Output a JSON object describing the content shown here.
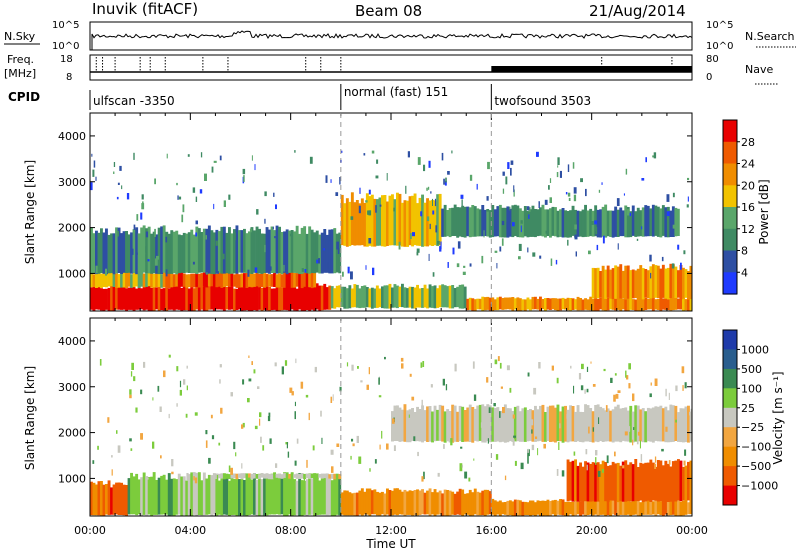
{
  "header": {
    "station": "Inuvik (fitACF)",
    "beam": "Beam 08",
    "date": "21/Aug/2014"
  },
  "top_strip": {
    "nsky_label": "N.Sky",
    "nsearch_label": "N.Search",
    "left_ticks": [
      "10^5",
      "10^0"
    ],
    "right_ticks": [
      "10^5",
      "10^0"
    ],
    "freq_label": "Freq.",
    "freq_unit": "[MHz]",
    "freq_ticks": [
      "18",
      "8"
    ],
    "nave_label": "Nave",
    "nave_ticks": [
      "80",
      "0"
    ],
    "cpid_label": "CPID",
    "cpid_segments": [
      {
        "label": "ulfscan -3350",
        "start_hour": 0
      },
      {
        "label": "normal (fast) 151",
        "start_hour": 10
      },
      {
        "label": "twofsound 3503",
        "start_hour": 16
      }
    ]
  },
  "colors": {
    "power": [
      "#1f3bff",
      "#2e4fa3",
      "#3f8a63",
      "#5aa66a",
      "#f2c300",
      "#f08d00",
      "#ef5a00",
      "#e80000"
    ],
    "velocity": [
      "#e80000",
      "#ef5a00",
      "#f08d00",
      "#f2a640",
      "#c8c8c0",
      "#7ccc3c",
      "#3a8a52",
      "#2a5e8e",
      "#1f3baa"
    ]
  },
  "chart_data": [
    {
      "type": "heatmap",
      "title": "",
      "xlabel": "",
      "ylabel": "Slant Range [km]",
      "x_ticks": [
        "00:00",
        "04:00",
        "08:00",
        "12:00",
        "16:00",
        "20:00",
        "00:00"
      ],
      "xlim": [
        0,
        24
      ],
      "ylim": [
        180,
        4500
      ],
      "y_ticks": [
        1000,
        2000,
        3000,
        4000
      ],
      "colorbar": {
        "label": "Power [dB]",
        "ticks": [
          "4",
          "8",
          "12",
          "16",
          "20",
          "24",
          "28"
        ],
        "range": [
          0,
          30
        ]
      },
      "regions": [
        {
          "t0": 0,
          "t1": 9.6,
          "r0": 200,
          "r1": 700,
          "value": 28
        },
        {
          "t0": 0,
          "t1": 3,
          "r0": 700,
          "r1": 1000,
          "value": 16
        },
        {
          "t0": 3,
          "t1": 9,
          "r0": 700,
          "r1": 1000,
          "value": 24
        },
        {
          "t0": 9.6,
          "t1": 15,
          "r0": 250,
          "r1": 700,
          "value": 12
        },
        {
          "t0": 15,
          "t1": 24,
          "r0": 200,
          "r1": 450,
          "value": 22
        },
        {
          "t0": 20,
          "t1": 24,
          "r0": 450,
          "r1": 1100,
          "value": 20
        },
        {
          "t0": 0,
          "t1": 10,
          "r0": 1000,
          "r1": 1900,
          "value": 8
        },
        {
          "t0": 10,
          "t1": 14,
          "r0": 1600,
          "r1": 2600,
          "value": 18
        },
        {
          "t0": 14,
          "t1": 23.5,
          "r0": 1800,
          "r1": 2400,
          "value": 8
        }
      ]
    },
    {
      "type": "heatmap",
      "title": "",
      "xlabel": "Time UT",
      "ylabel": "Slant Range [km]",
      "x_ticks": [
        "00:00",
        "04:00",
        "08:00",
        "12:00",
        "16:00",
        "20:00",
        "00:00"
      ],
      "xlim": [
        0,
        24
      ],
      "ylim": [
        180,
        4500
      ],
      "y_ticks": [
        1000,
        2000,
        3000,
        4000
      ],
      "colorbar": {
        "label": "Velocity [m s⁻¹]",
        "ticks": [
          "1000",
          "500",
          "100",
          "25",
          "−25",
          "−100",
          "−500",
          "−1000"
        ]
      },
      "regions": [
        {
          "t0": 0,
          "t1": 1.5,
          "r0": 200,
          "r1": 850,
          "value": -500
        },
        {
          "t0": 1.5,
          "t1": 10,
          "r0": 200,
          "r1": 1000,
          "value": 100
        },
        {
          "t0": 5,
          "t1": 10,
          "r0": 1000,
          "r1": 1100,
          "value": 25
        },
        {
          "t0": 10,
          "t1": 16,
          "r0": 200,
          "r1": 700,
          "value": -100
        },
        {
          "t0": 16,
          "t1": 24,
          "r0": 200,
          "r1": 500,
          "value": -100
        },
        {
          "t0": 19,
          "t1": 24,
          "r0": 500,
          "r1": 1300,
          "value": -500
        },
        {
          "t0": 12,
          "t1": 24,
          "r0": 1800,
          "r1": 2500,
          "value": 25
        }
      ]
    }
  ]
}
